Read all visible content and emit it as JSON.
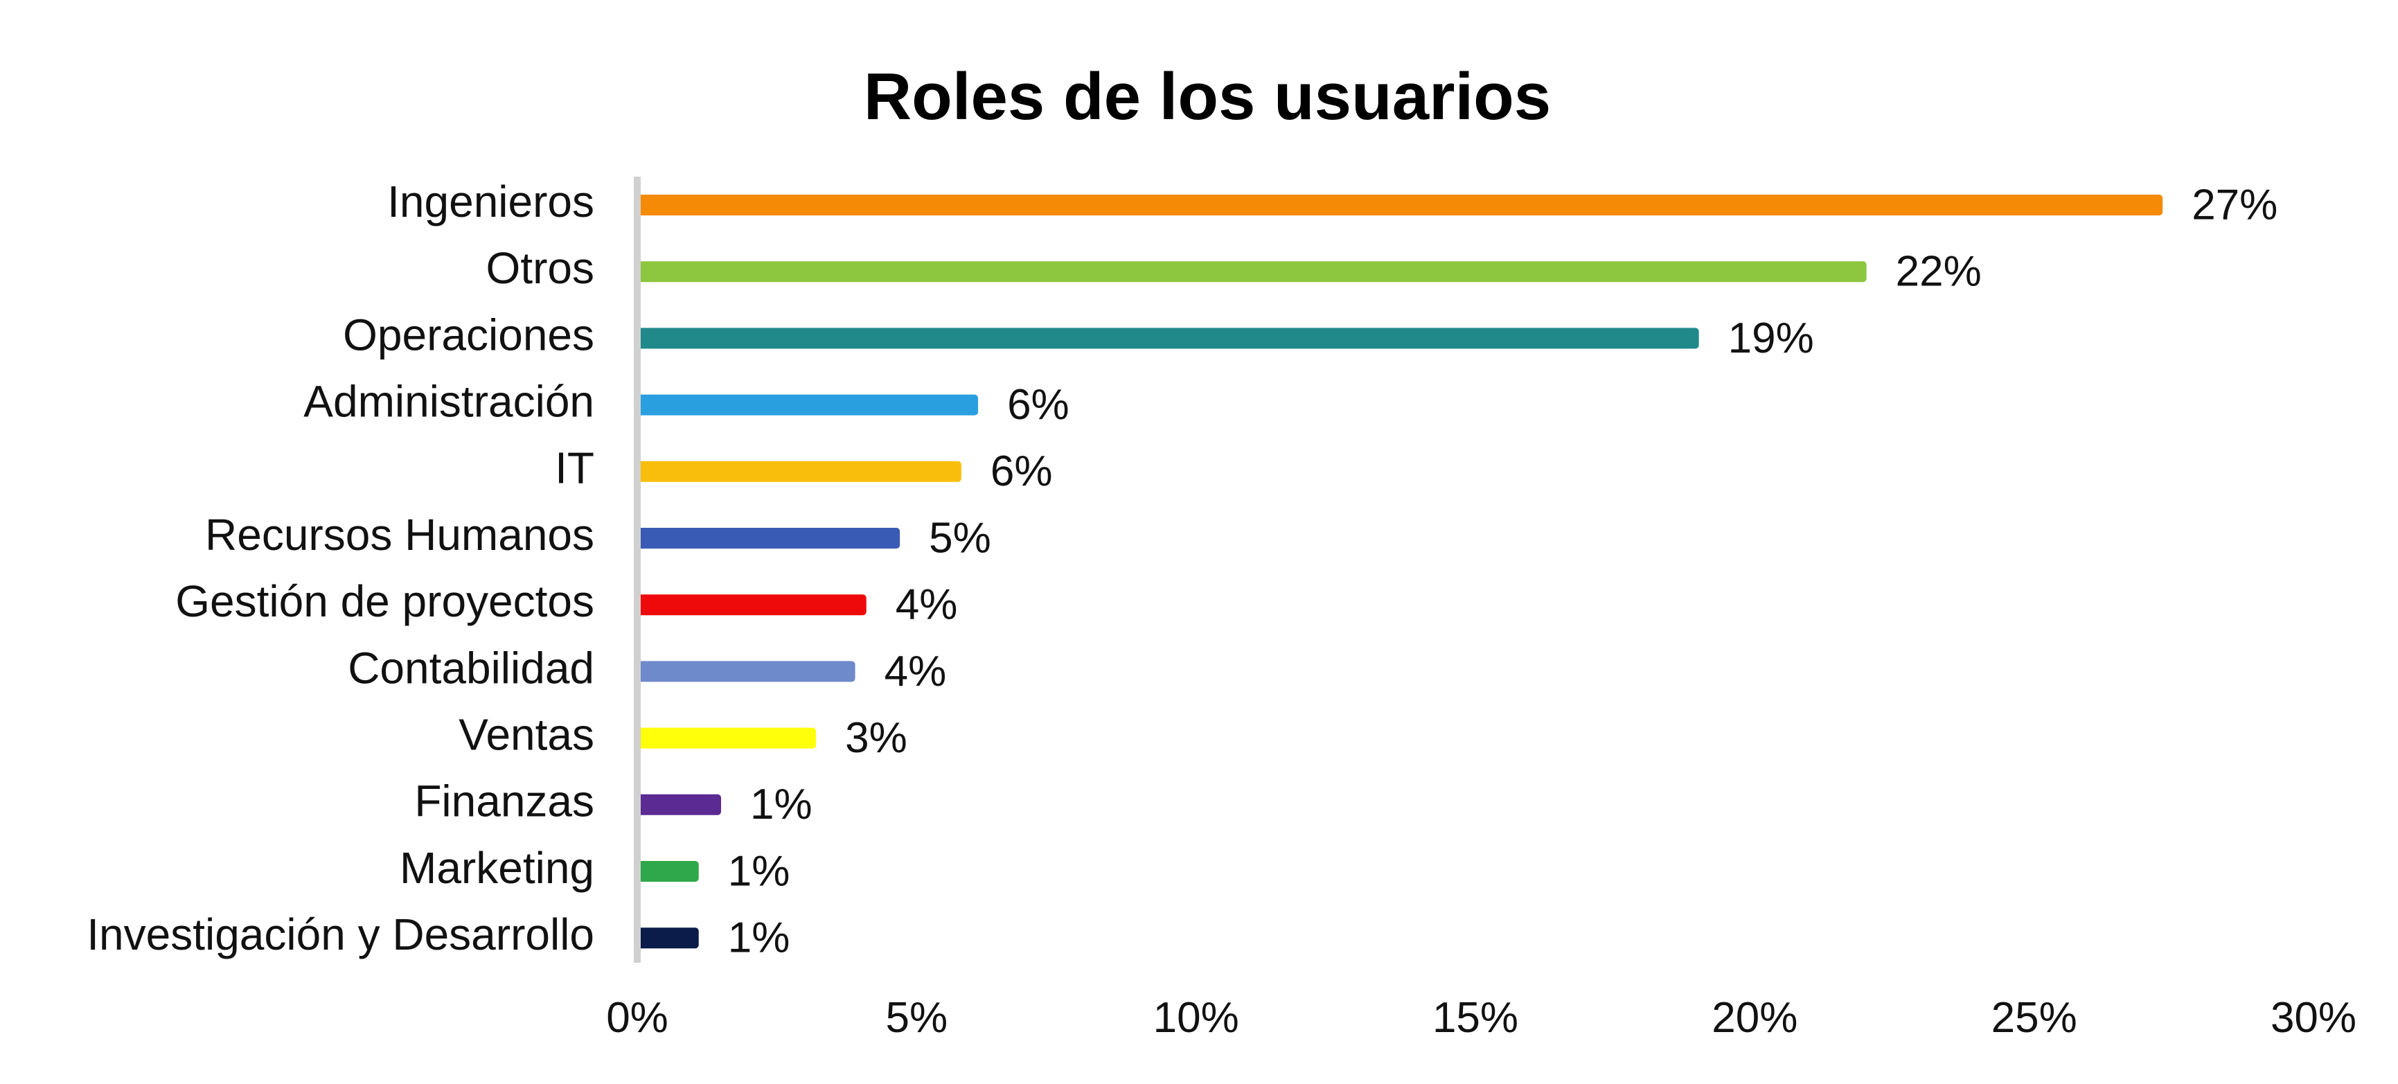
{
  "chart_data": {
    "type": "bar",
    "orientation": "horizontal",
    "title": "Roles de los usuarios",
    "xlabel": "",
    "ylabel": "",
    "xlim": [
      0,
      30
    ],
    "x_ticks": [
      "0%",
      "5%",
      "10%",
      "15%",
      "20%",
      "25%",
      "30%"
    ],
    "grid": false,
    "legend": "none",
    "categories": [
      "Ingenieros",
      "Otros",
      "Operaciones",
      "Administración",
      "IT",
      "Recursos Humanos",
      "Gestión de proyectos",
      "Contabilidad",
      "Ventas",
      "Finanzas",
      "Marketing",
      "Investigación y Desarrollo"
    ],
    "values": [
      27.3,
      22,
      19,
      6.1,
      5.8,
      4.7,
      4.1,
      3.9,
      3.2,
      1.5,
      1.1,
      1.1
    ],
    "value_labels": [
      "27%",
      "22%",
      "19%",
      "6%",
      "6%",
      "5%",
      "4%",
      "4%",
      "3%",
      "1%",
      "1%",
      "1%"
    ],
    "colors": [
      "#F58A07",
      "#8DC63F",
      "#21898A",
      "#2A9FE0",
      "#F9BE0C",
      "#3A5BB5",
      "#EE0A0A",
      "#6E8ACB",
      "#FFFF0A",
      "#5B2A92",
      "#2EA84A",
      "#0B1C4A"
    ]
  }
}
